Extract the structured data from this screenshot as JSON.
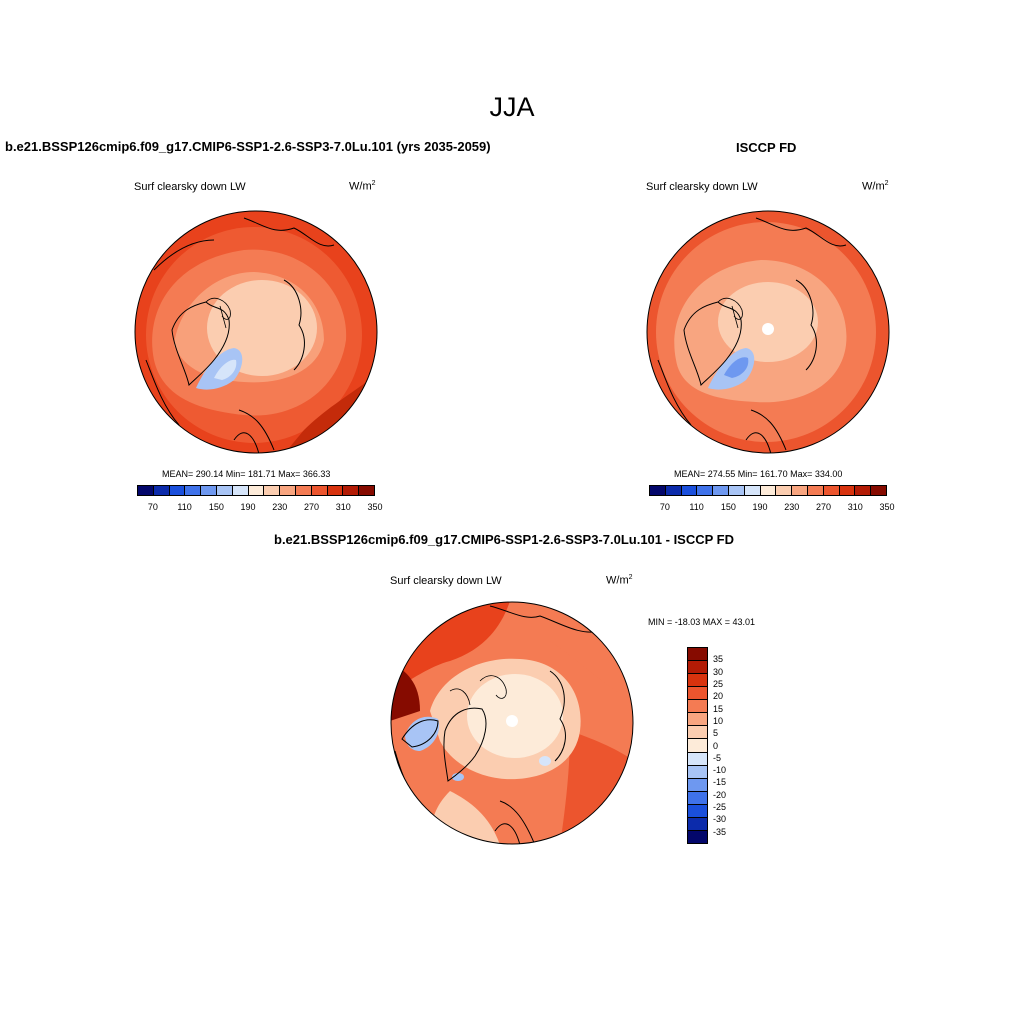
{
  "figure": {
    "title": "JJA"
  },
  "panels": {
    "left": {
      "title": "b.e21.BSSP126cmip6.f09_g17.CMIP6-SSP1-2.6-SSP3-7.0Lu.101 (yrs 2035-2059)",
      "variable": "Surf clearsky down LW",
      "unit": "W/m",
      "unit_sup": "2",
      "stats": "MEAN= 290.14  Min= 181.71  Max= 366.33"
    },
    "right": {
      "title": "ISCCP FD",
      "variable": "Surf clearsky down LW",
      "unit": "W/m",
      "unit_sup": "2",
      "stats": "MEAN= 274.55  Min= 161.70  Max= 334.00"
    },
    "diff": {
      "title": "b.e21.BSSP126cmip6.f09_g17.CMIP6-SSP1-2.6-SSP3-7.0Lu.101 - ISCCP FD",
      "variable": "Surf clearsky down LW",
      "unit": "W/m",
      "unit_sup": "2",
      "stats": "MIN = -18.03 MAX =  43.01"
    }
  },
  "colorbars": {
    "absolute": {
      "colors": [
        "#03076b",
        "#0c2bab",
        "#1a4fdc",
        "#3f72ea",
        "#6e98f0",
        "#a8c4f5",
        "#d6e5fa",
        "#fdebd9",
        "#fbcdb0",
        "#f8a580",
        "#f47b53",
        "#ec552e",
        "#d8330e",
        "#b31b05",
        "#860b00"
      ],
      "tick_labels": [
        "70",
        "110",
        "150",
        "190",
        "230",
        "270",
        "310",
        "350"
      ]
    },
    "difference": {
      "colors": [
        "#860b00",
        "#b31b05",
        "#d8330e",
        "#ec552e",
        "#f47b53",
        "#f8a580",
        "#fbcdb0",
        "#fdebd9",
        "#d6e5fa",
        "#a8c4f5",
        "#6e98f0",
        "#3f72ea",
        "#1a4fdc",
        "#0c2bab",
        "#03076b"
      ],
      "tick_labels": [
        "35",
        "30",
        "25",
        "20",
        "15",
        "10",
        "5",
        "0",
        "-5",
        "-10",
        "-15",
        "-20",
        "-25",
        "-30",
        "-35"
      ]
    }
  },
  "maps": {
    "projection": "north-polar-stereographic",
    "left": {
      "ocean": "#f26c47",
      "outer": "#e8421c",
      "arctic": "#fbcdb0",
      "mid": "#f8a07a",
      "greenland": "#a8c4f5",
      "greenland_core": "#d6e5fa"
    },
    "right": {
      "ocean": "#f47b53",
      "outer": "#ec552e",
      "arctic": "#fbcdb0",
      "mid": "#f8a580",
      "greenland": "#a8c4f5",
      "greenland_core": "#6e98f0",
      "pole_hole": "#ffffff"
    },
    "diff": {
      "ocean": "#f47b53",
      "outer": "#ec552e",
      "arctic": "#fdebd9",
      "mid": "#fbcdb0",
      "hot": "#860b00",
      "cold": "#a8c4f5",
      "pole_hole": "#ffffff"
    }
  }
}
